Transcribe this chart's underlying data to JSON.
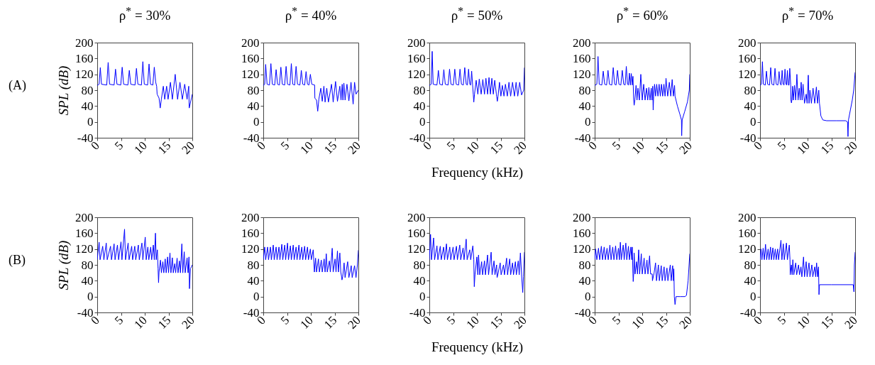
{
  "chart_data": [
    {
      "type": "line",
      "title": "ρ$^{*}$ = 30%",
      "ylabel": "SPL (dB)",
      "annotations": [
        "(A)"
      ],
      "xlim": [
        0,
        20
      ],
      "ylim": [
        -40,
        200
      ],
      "xticks": [
        0,
        5,
        10,
        15,
        20
      ],
      "yticks": [
        -40,
        0,
        40,
        80,
        120,
        160,
        200
      ],
      "grid": false,
      "x": [
        0,
        0.4,
        0.65,
        0.9,
        2.0,
        2.3,
        2.6,
        3.55,
        3.85,
        4.15,
        4.95,
        5.25,
        5.55,
        6.45,
        6.75,
        7.05,
        7.95,
        8.25,
        8.55,
        9.3,
        9.6,
        9.9,
        10.6,
        10.9,
        11.2,
        11.7,
        12.0,
        12.3,
        12.5,
        12.6,
        13.0,
        13.25,
        13.5,
        13.9,
        14.2,
        14.6,
        14.9,
        15.4,
        15.8,
        16.4,
        16.9,
        17.4,
        17.9,
        18.4,
        18.9,
        19.25,
        19.35,
        20
      ],
      "series": [
        {
          "color": "#0000ff",
          "values": [
            92,
            95,
            137,
            95,
            93,
            150,
            95,
            93,
            133,
            95,
            93,
            138,
            95,
            93,
            130,
            95,
            93,
            135,
            95,
            93,
            152,
            95,
            93,
            146,
            95,
            93,
            138,
            100,
            90,
            70,
            60,
            35,
            58,
            90,
            57,
            90,
            57,
            100,
            57,
            120,
            57,
            100,
            57,
            95,
            57,
            90,
            35,
            70
          ]
        }
      ]
    },
    {
      "type": "line",
      "title": "ρ$^{*}$ = 40%",
      "xlim": [
        0,
        20
      ],
      "ylim": [
        -40,
        200
      ],
      "xticks": [
        0,
        5,
        10,
        15,
        20
      ],
      "yticks": [
        -40,
        0,
        40,
        80,
        120,
        160,
        200
      ],
      "grid": false,
      "x": [
        0,
        0.3,
        0.5,
        0.8,
        1.3,
        1.6,
        1.9,
        2.4,
        2.7,
        3.0,
        3.4,
        3.7,
        4.0,
        4.5,
        4.8,
        5.1,
        5.6,
        5.9,
        6.2,
        6.6,
        6.9,
        7.2,
        7.7,
        8.0,
        8.3,
        8.7,
        9.0,
        9.3,
        9.6,
        9.9,
        10.2,
        10.8,
        10.85,
        11.2,
        11.45,
        11.7,
        12.1,
        12.4,
        12.75,
        13.0,
        13.35,
        13.7,
        14.35,
        14.7,
        15.2,
        15.6,
        16.1,
        16.35,
        16.6,
        16.75,
        16.95,
        17.2,
        17.6,
        18.0,
        18.45,
        18.9,
        19.2,
        19.5,
        20
      ],
      "series": [
        {
          "color": "#0000ff",
          "values": [
            92,
            95,
            145,
            95,
            93,
            147,
            95,
            93,
            132,
            95,
            93,
            138,
            95,
            93,
            140,
            95,
            93,
            147,
            95,
            93,
            140,
            95,
            93,
            130,
            95,
            93,
            127,
            95,
            93,
            120,
            95,
            93,
            60,
            55,
            27,
            58,
            85,
            52,
            90,
            50,
            85,
            50,
            95,
            50,
            102,
            52,
            90,
            55,
            95,
            55,
            98,
            55,
            95,
            53,
            100,
            45,
            100,
            70,
            80
          ]
        }
      ]
    },
    {
      "type": "line",
      "title": "ρ$^{*}$ = 50%",
      "xlabel": "Frequency (kHz)",
      "xlim": [
        0,
        20
      ],
      "ylim": [
        -40,
        200
      ],
      "xticks": [
        0,
        5,
        10,
        15,
        20
      ],
      "yticks": [
        -40,
        0,
        40,
        80,
        120,
        160,
        200
      ],
      "grid": false,
      "x": [
        0,
        0.4,
        0.6,
        0.8,
        1.6,
        1.9,
        2.2,
        2.75,
        3.05,
        3.35,
        3.95,
        4.25,
        4.55,
        5.05,
        5.35,
        5.65,
        6.15,
        6.45,
        6.75,
        7.15,
        7.45,
        7.75,
        8.0,
        8.25,
        8.5,
        8.7,
        8.9,
        9.1,
        9.25,
        9.35,
        9.5,
        9.85,
        10.2,
        10.5,
        10.9,
        11.25,
        11.6,
        11.9,
        12.25,
        12.55,
        12.85,
        13.15,
        13.45,
        13.75,
        14.1,
        14.15,
        14.3,
        14.45,
        14.75,
        15.05,
        15.35,
        15.7,
        16.0,
        16.4,
        16.75,
        17.1,
        17.5,
        17.9,
        18.25,
        18.6,
        19.0,
        19.4,
        19.85,
        20
      ],
      "series": [
        {
          "color": "#0000ff",
          "values": [
            92,
            95,
            178,
            95,
            93,
            130,
            95,
            93,
            132,
            95,
            93,
            133,
            95,
            93,
            133,
            95,
            93,
            133,
            95,
            93,
            137,
            95,
            93,
            133,
            95,
            93,
            128,
            93,
            68,
            50,
            70,
            105,
            70,
            108,
            70,
            107,
            70,
            110,
            70,
            112,
            70,
            110,
            70,
            105,
            70,
            65,
            52,
            65,
            100,
            65,
            92,
            65,
            95,
            65,
            100,
            65,
            100,
            65,
            100,
            65,
            100,
            68,
            80,
            137
          ]
        }
      ]
    },
    {
      "type": "line",
      "title": "ρ$^{*}$ = 60%",
      "xlim": [
        0,
        20
      ],
      "ylim": [
        -40,
        200
      ],
      "xticks": [
        0,
        5,
        10,
        15,
        20
      ],
      "yticks": [
        -40,
        0,
        40,
        80,
        120,
        160,
        200
      ],
      "grid": false,
      "x": [
        0,
        0.45,
        0.7,
        0.95,
        1.5,
        1.8,
        2.1,
        2.5,
        2.8,
        3.1,
        3.6,
        3.9,
        4.2,
        4.5,
        4.8,
        5.1,
        5.5,
        5.8,
        6.1,
        6.4,
        6.65,
        6.9,
        7.1,
        7.3,
        7.5,
        7.7,
        7.9,
        8.05,
        8.2,
        8.3,
        8.45,
        8.7,
        8.9,
        9.1,
        9.4,
        9.7,
        10.0,
        10.3,
        10.6,
        10.9,
        11.15,
        11.4,
        11.65,
        11.9,
        12.05,
        12.2,
        12.3,
        12.4,
        12.6,
        12.8,
        13.05,
        13.3,
        13.55,
        13.8,
        14.05,
        14.3,
        14.55,
        14.8,
        15.0,
        15.35,
        15.7,
        16.0,
        16.3,
        16.55,
        16.8,
        16.9,
        17.4,
        17.9,
        18.25,
        18.3,
        18.4,
        18.9,
        19.5,
        19.9,
        20
      ],
      "series": [
        {
          "color": "#0000ff",
          "values": [
            92,
            95,
            165,
            95,
            93,
            128,
            95,
            93,
            130,
            95,
            93,
            137,
            95,
            93,
            130,
            95,
            93,
            130,
            95,
            93,
            140,
            95,
            93,
            123,
            93,
            122,
            93,
            115,
            55,
            42,
            55,
            92,
            55,
            85,
            55,
            120,
            55,
            95,
            55,
            85,
            55,
            87,
            55,
            85,
            55,
            90,
            30,
            65,
            95,
            65,
            95,
            65,
            95,
            65,
            95,
            65,
            95,
            65,
            110,
            65,
            100,
            65,
            107,
            65,
            92,
            65,
            40,
            20,
            5,
            -35,
            5,
            25,
            50,
            80,
            120
          ]
        }
      ]
    },
    {
      "type": "line",
      "title": "ρ$^{*}$ = 70%",
      "xlim": [
        0,
        20
      ],
      "ylim": [
        -40,
        200
      ],
      "xticks": [
        0,
        5,
        10,
        15,
        20
      ],
      "yticks": [
        -40,
        0,
        40,
        80,
        120,
        160,
        200
      ],
      "grid": false,
      "x": [
        0,
        0.3,
        0.5,
        0.7,
        1.1,
        1.35,
        1.6,
        2.0,
        2.25,
        2.5,
        2.9,
        3.15,
        3.4,
        3.75,
        4.0,
        4.25,
        4.45,
        4.65,
        4.85,
        5.05,
        5.25,
        5.45,
        5.6,
        5.75,
        5.95,
        6.1,
        6.25,
        6.45,
        6.5,
        6.6,
        6.7,
        6.85,
        7.0,
        7.25,
        7.5,
        7.75,
        8.0,
        8.25,
        8.45,
        8.65,
        8.85,
        9.05,
        9.3,
        9.35,
        9.7,
        9.9,
        10.15,
        10.3,
        10.5,
        10.8,
        11.15,
        11.5,
        11.85,
        12.1,
        12.35,
        12.5,
        12.8,
        13.2,
        14,
        16,
        18,
        18.4,
        18.5,
        18.6,
        19.0,
        19.4,
        19.7,
        20
      ],
      "series": [
        {
          "color": "#0000ff",
          "values": [
            92,
            95,
            152,
            95,
            93,
            128,
            95,
            93,
            137,
            95,
            93,
            135,
            95,
            93,
            127,
            95,
            93,
            130,
            95,
            93,
            133,
            95,
            93,
            130,
            93,
            93,
            135,
            93,
            55,
            48,
            55,
            90,
            55,
            92,
            55,
            120,
            55,
            85,
            55,
            100,
            55,
            95,
            55,
            47,
            70,
            47,
            118,
            47,
            80,
            47,
            85,
            47,
            88,
            47,
            80,
            47,
            15,
            5,
            3,
            3,
            3,
            0,
            -37,
            5,
            30,
            55,
            80,
            125
          ]
        }
      ]
    },
    {
      "type": "line",
      "ylabel": "SPL (dB)",
      "annotations": [
        "(B)"
      ],
      "xlim": [
        0,
        20
      ],
      "ylim": [
        -40,
        200
      ],
      "xticks": [
        0,
        5,
        10,
        15,
        20
      ],
      "yticks": [
        -40,
        0,
        40,
        80,
        120,
        160,
        200
      ],
      "grid": false,
      "x": [
        0,
        0.4,
        0.6,
        1.15,
        1.4,
        1.9,
        2.1,
        2.8,
        3.0,
        3.55,
        3.75,
        4.25,
        4.5,
        5.0,
        5.2,
        5.75,
        5.95,
        6.5,
        6.7,
        7.25,
        7.45,
        7.9,
        8.1,
        8.65,
        8.85,
        9.4,
        9.6,
        10.1,
        10.3,
        10.65,
        10.85,
        11.25,
        11.45,
        11.8,
        12.0,
        12.25,
        12.4,
        12.65,
        12.8,
        12.9,
        13.0,
        13.3,
        13.5,
        13.8,
        14.0,
        14.3,
        14.5,
        14.8,
        15.0,
        15.3,
        15.5,
        15.8,
        16.0,
        16.3,
        16.5,
        16.8,
        17.0,
        17.3,
        17.5,
        17.8,
        18.0,
        18.3,
        18.5,
        18.9,
        19.1,
        19.3,
        19.4,
        19.6,
        20
      ],
      "series": [
        {
          "color": "#0000ff",
          "values": [
            93,
            137,
            93,
            127,
            93,
            135,
            93,
            127,
            93,
            133,
            93,
            130,
            93,
            138,
            93,
            170,
            93,
            135,
            93,
            127,
            93,
            127,
            93,
            130,
            93,
            135,
            93,
            150,
            93,
            125,
            93,
            125,
            93,
            130,
            93,
            160,
            93,
            118,
            70,
            35,
            62,
            92,
            60,
            88,
            60,
            95,
            60,
            100,
            60,
            110,
            60,
            98,
            60,
            83,
            60,
            97,
            60,
            90,
            60,
            133,
            60,
            113,
            60,
            98,
            60,
            100,
            20,
            70,
            80
          ]
        }
      ]
    },
    {
      "type": "line",
      "xlim": [
        0,
        20
      ],
      "ylim": [
        -40,
        200
      ],
      "xticks": [
        0,
        5,
        10,
        15,
        20
      ],
      "yticks": [
        -40,
        0,
        40,
        80,
        120,
        160,
        200
      ],
      "grid": false,
      "x": [
        0,
        0.3,
        0.5,
        0.9,
        1.1,
        1.5,
        1.7,
        2.1,
        2.3,
        2.7,
        2.9,
        3.3,
        3.5,
        3.9,
        4.1,
        4.5,
        4.7,
        5.1,
        5.3,
        5.7,
        5.9,
        6.3,
        6.5,
        6.9,
        7.1,
        7.5,
        7.7,
        8.1,
        8.3,
        8.7,
        8.9,
        9.3,
        9.5,
        9.9,
        10.1,
        10.5,
        10.75,
        11.0,
        11.2,
        11.6,
        11.8,
        12.2,
        12.4,
        12.8,
        13.0,
        13.25,
        13.45,
        13.9,
        14.1,
        14.5,
        14.7,
        15.1,
        15.3,
        15.6,
        15.8,
        16.1,
        16.3,
        16.5,
        16.55,
        16.7,
        17.0,
        17.2,
        17.75,
        18.0,
        18.5,
        18.7,
        19.2,
        19.5,
        19.8,
        20
      ],
      "series": [
        {
          "color": "#0000ff",
          "values": [
            93,
            125,
            93,
            125,
            93,
            125,
            93,
            130,
            93,
            125,
            93,
            125,
            93,
            132,
            93,
            130,
            93,
            135,
            93,
            128,
            93,
            130,
            93,
            125,
            93,
            130,
            93,
            125,
            93,
            127,
            93,
            125,
            93,
            120,
            93,
            118,
            62,
            97,
            62,
            95,
            62,
            92,
            62,
            95,
            62,
            108,
            62,
            90,
            62,
            122,
            62,
            95,
            62,
            115,
            62,
            110,
            62,
            48,
            42,
            50,
            85,
            48,
            88,
            48,
            78,
            48,
            78,
            48,
            80,
            117
          ]
        }
      ]
    },
    {
      "type": "line",
      "xlabel": "Frequency (kHz)",
      "xlim": [
        0,
        20
      ],
      "ylim": [
        -40,
        200
      ],
      "xticks": [
        0,
        5,
        10,
        15,
        20
      ],
      "yticks": [
        -40,
        0,
        40,
        80,
        120,
        160,
        200
      ],
      "grid": false,
      "x": [
        0,
        0.25,
        0.45,
        0.9,
        1.1,
        1.6,
        1.8,
        2.3,
        2.5,
        3.0,
        3.2,
        3.6,
        3.8,
        4.3,
        4.5,
        5.0,
        5.2,
        5.7,
        5.9,
        6.4,
        6.6,
        7.1,
        7.3,
        7.75,
        7.95,
        8.5,
        8.7,
        9.15,
        9.35,
        9.4,
        9.45,
        9.6,
        10.0,
        10.2,
        10.35,
        10.6,
        11.0,
        11.2,
        11.6,
        11.8,
        12.25,
        12.45,
        13.0,
        13.2,
        13.6,
        13.8,
        14.15,
        14.25,
        14.4,
        14.9,
        15.1,
        15.6,
        15.8,
        16.25,
        16.45,
        16.9,
        17.1,
        17.5,
        17.7,
        18.1,
        18.3,
        18.7,
        18.9,
        19.15,
        19.4,
        19.65,
        19.8,
        20
      ],
      "series": [
        {
          "color": "#0000ff",
          "values": [
            93,
            157,
            93,
            148,
            93,
            128,
            93,
            127,
            93,
            125,
            93,
            133,
            93,
            125,
            93,
            125,
            93,
            127,
            93,
            130,
            93,
            123,
            93,
            145,
            93,
            118,
            93,
            128,
            93,
            55,
            25,
            55,
            100,
            55,
            105,
            55,
            88,
            55,
            90,
            55,
            105,
            55,
            112,
            55,
            90,
            55,
            80,
            48,
            55,
            85,
            55,
            80,
            55,
            97,
            55,
            95,
            55,
            85,
            55,
            88,
            55,
            90,
            55,
            110,
            55,
            10,
            50,
            112
          ]
        }
      ]
    },
    {
      "type": "line",
      "xlim": [
        0,
        20
      ],
      "ylim": [
        -40,
        200
      ],
      "xticks": [
        0,
        5,
        10,
        15,
        20
      ],
      "yticks": [
        -40,
        0,
        40,
        80,
        120,
        160,
        200
      ],
      "grid": false,
      "x": [
        0,
        0.2,
        0.45,
        0.8,
        1.05,
        1.4,
        1.65,
        2.0,
        2.25,
        2.6,
        2.85,
        3.2,
        3.45,
        3.8,
        4.05,
        4.4,
        4.65,
        5.0,
        5.2,
        5.4,
        5.6,
        6.0,
        6.2,
        6.55,
        6.75,
        7.1,
        7.3,
        7.6,
        7.8,
        7.9,
        8.05,
        8.1,
        8.2,
        8.3,
        8.5,
        8.8,
        9.0,
        9.25,
        9.45,
        9.8,
        10.0,
        10.4,
        10.6,
        11.0,
        11.2,
        11.55,
        11.75,
        12.1,
        12.15,
        12.5,
        12.8,
        13.0,
        13.4,
        13.6,
        14.0,
        14.2,
        14.6,
        14.8,
        15.2,
        15.4,
        15.9,
        16.1,
        16.4,
        16.55,
        16.65,
        16.75,
        16.9,
        17.1,
        18.0,
        19.0,
        19.3,
        19.65,
        20
      ],
      "series": [
        {
          "color": "#0000ff",
          "values": [
            93,
            120,
            93,
            122,
            93,
            127,
            93,
            125,
            93,
            122,
            93,
            130,
            93,
            125,
            93,
            128,
            93,
            122,
            93,
            137,
            93,
            130,
            93,
            135,
            93,
            127,
            93,
            125,
            93,
            125,
            57,
            38,
            57,
            110,
            57,
            88,
            57,
            118,
            57,
            108,
            57,
            97,
            57,
            92,
            57,
            103,
            57,
            57,
            40,
            60,
            85,
            40,
            80,
            40,
            78,
            40,
            75,
            40,
            72,
            40,
            80,
            40,
            78,
            40,
            70,
            0,
            -20,
            0,
            0,
            0,
            3,
            40,
            108
          ]
        }
      ]
    },
    {
      "type": "line",
      "xlim": [
        0,
        20
      ],
      "ylim": [
        -40,
        200
      ],
      "xticks": [
        0,
        5,
        10,
        15,
        20
      ],
      "yticks": [
        -40,
        0,
        40,
        80,
        120,
        160,
        200
      ],
      "grid": false,
      "x": [
        0,
        0.2,
        0.4,
        0.65,
        0.9,
        1.15,
        1.4,
        1.7,
        1.9,
        2.2,
        2.4,
        2.7,
        2.9,
        3.2,
        3.4,
        3.7,
        3.9,
        4.4,
        4.6,
        4.9,
        5.1,
        5.55,
        5.75,
        6.15,
        6.3,
        6.35,
        6.6,
        6.75,
        6.9,
        7.1,
        7.5,
        7.7,
        8.1,
        8.3,
        8.6,
        8.8,
        9.15,
        9.35,
        9.7,
        9.9,
        10.3,
        10.5,
        10.9,
        11.1,
        11.5,
        11.7,
        11.9,
        12.1,
        12.3,
        12.4,
        12.5,
        15,
        19.6,
        19.75,
        19.85,
        20
      ],
      "series": [
        {
          "color": "#0000ff",
          "values": [
            93,
            120,
            93,
            122,
            93,
            132,
            93,
            120,
            93,
            125,
            93,
            123,
            93,
            120,
            93,
            120,
            93,
            142,
            93,
            133,
            93,
            135,
            93,
            130,
            93,
            55,
            80,
            55,
            93,
            55,
            85,
            55,
            80,
            55,
            75,
            50,
            100,
            50,
            88,
            50,
            85,
            50,
            80,
            50,
            75,
            50,
            85,
            50,
            75,
            5,
            30,
            30,
            30,
            12,
            80,
            112
          ]
        }
      ]
    }
  ]
}
